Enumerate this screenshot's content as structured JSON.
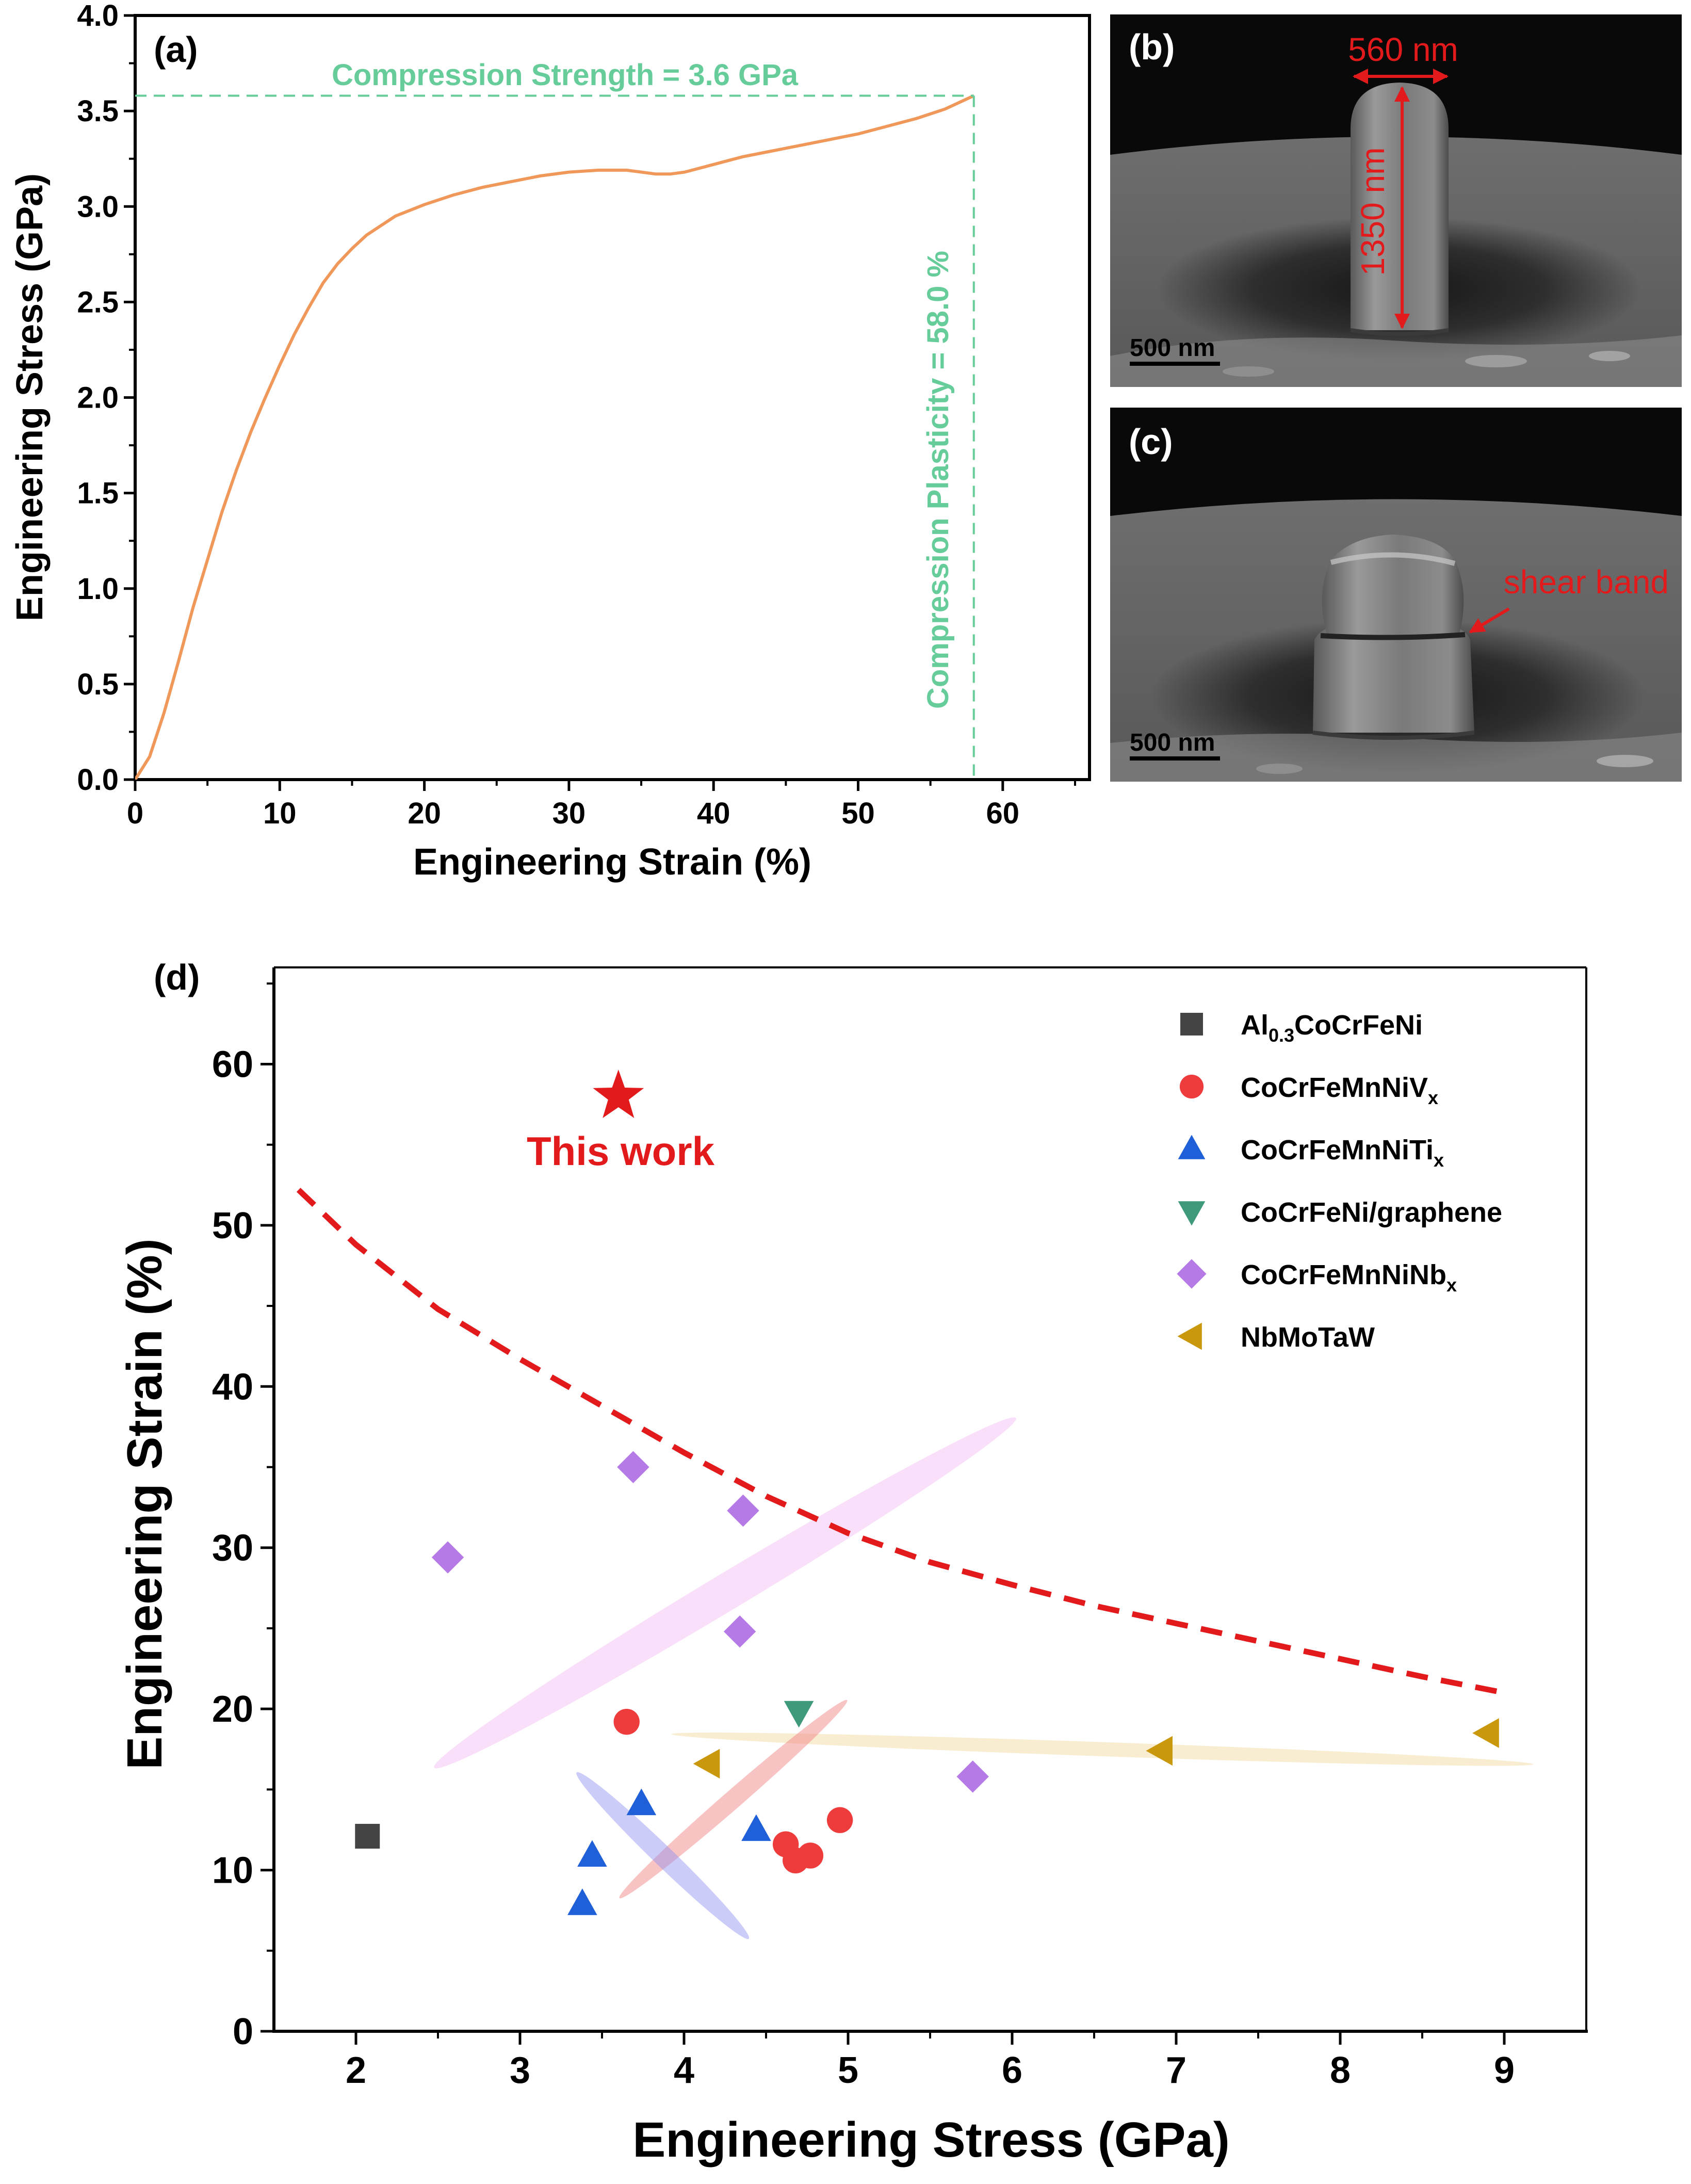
{
  "colors": {
    "curve": "#f0975a",
    "annotation": "#66cc99",
    "red": "#e31a1c",
    "dash": "#e31a1c",
    "V": "#ee3c3c",
    "Ti": "#1f5fd8",
    "graphene": "#3e9a7a",
    "Nb": "#b57ae6",
    "NbMoTaW": "#c9980c",
    "Al": "#444444",
    "ellipse_pink": "#f2b8f5",
    "ellipse_blue": "#8f8ff0",
    "ellipse_red": "#f07a7a",
    "ellipse_gold": "#f0d79a"
  },
  "panel_a": {
    "tag": "(a)",
    "strength_label": "Compression Strength = 3.6 GPa",
    "plasticity_label": "Compression Plasticity = 58.0 %"
  },
  "panel_b": {
    "tag": "(b)",
    "width_label": "560 nm",
    "height_label": "1350 nm",
    "scale_label": "500 nm"
  },
  "panel_c": {
    "tag": "(c)",
    "shear_label": "shear band",
    "scale_label": "500 nm"
  },
  "panel_d": {
    "tag": "(d)",
    "this_work_label": "This work"
  },
  "chart_data": [
    {
      "type": "line",
      "panel": "a",
      "xlabel": "Engineering Strain (%)",
      "ylabel": "Engineering Stress (GPa)",
      "xlim": [
        0,
        66
      ],
      "ylim": [
        0,
        4.0
      ],
      "xticks": [
        "0",
        "10",
        "20",
        "30",
        "40",
        "50",
        "60"
      ],
      "yticks": [
        "0.0",
        "0.5",
        "1.0",
        "1.5",
        "2.0",
        "2.5",
        "3.0",
        "3.5",
        "4.0"
      ],
      "x": [
        0,
        1,
        2,
        3,
        4,
        5,
        6,
        7,
        8,
        9,
        10,
        11,
        12,
        13,
        14,
        15,
        16,
        17,
        18,
        19,
        20,
        22,
        24,
        26,
        28,
        30,
        32,
        34,
        36,
        37,
        38,
        40,
        42,
        44,
        46,
        48,
        50,
        52,
        54,
        56,
        58
      ],
      "y": [
        0,
        0.12,
        0.35,
        0.62,
        0.9,
        1.15,
        1.4,
        1.62,
        1.82,
        2.0,
        2.17,
        2.33,
        2.47,
        2.6,
        2.7,
        2.78,
        2.85,
        2.9,
        2.95,
        2.98,
        3.01,
        3.06,
        3.1,
        3.13,
        3.16,
        3.18,
        3.19,
        3.19,
        3.17,
        3.17,
        3.18,
        3.22,
        3.26,
        3.29,
        3.32,
        3.35,
        3.38,
        3.42,
        3.46,
        3.51,
        3.58
      ]
    },
    {
      "type": "scatter",
      "panel": "d",
      "xlabel": "Engineering Stress (GPa)",
      "ylabel": "Engineering Strain (%)",
      "xlim": [
        1.5,
        9.5
      ],
      "ylim": [
        0,
        66
      ],
      "xticks": [
        "2",
        "3",
        "4",
        "5",
        "6",
        "7",
        "8",
        "9"
      ],
      "yticks": [
        "0",
        "10",
        "20",
        "30",
        "40",
        "50",
        "60"
      ],
      "legend_position": "top-right",
      "series": [
        {
          "name_main": "Al",
          "name_sub": "0.3",
          "name_tail": "CoCrFeNi",
          "marker": "square",
          "color_key": "Al",
          "points": [
            [
              2.07,
              12.1
            ]
          ]
        },
        {
          "name_main": "CoCrFeMnNiV",
          "name_sub": "x",
          "name_tail": "",
          "marker": "circle",
          "color_key": "V",
          "points": [
            [
              3.65,
              19.2
            ],
            [
              4.62,
              11.6
            ],
            [
              4.68,
              10.6
            ],
            [
              4.77,
              10.9
            ],
            [
              4.95,
              13.1
            ]
          ]
        },
        {
          "name_main": "CoCrFeMnNiTi",
          "name_sub": "x",
          "name_tail": "",
          "marker": "triangle-up",
          "color_key": "Ti",
          "points": [
            [
              3.38,
              7.9
            ],
            [
              3.44,
              10.9
            ],
            [
              3.74,
              14.1
            ],
            [
              4.44,
              12.5
            ]
          ]
        },
        {
          "name_main": "CoCrFeNi/graphene",
          "name_sub": "",
          "name_tail": "",
          "marker": "triangle-down",
          "color_key": "graphene",
          "points": [
            [
              4.7,
              19.8
            ]
          ]
        },
        {
          "name_main": "CoCrFeMnNiNb",
          "name_sub": "x",
          "name_tail": "",
          "marker": "diamond",
          "color_key": "Nb",
          "points": [
            [
              2.56,
              29.4
            ],
            [
              3.69,
              35.0
            ],
            [
              4.36,
              32.3
            ],
            [
              4.34,
              24.8
            ],
            [
              5.76,
              15.8
            ]
          ]
        },
        {
          "name_main": "NbMoTaW",
          "name_sub": "",
          "name_tail": "",
          "marker": "triangle-left",
          "color_key": "NbMoTaW",
          "points": [
            [
              4.15,
              16.6
            ],
            [
              6.91,
              17.4
            ],
            [
              8.9,
              18.5
            ]
          ]
        }
      ],
      "this_work": {
        "x": 3.6,
        "y": 58.0
      },
      "trend_line": {
        "x": [
          1.65,
          2.0,
          2.5,
          3.0,
          3.5,
          4.0,
          4.5,
          5.0,
          5.5,
          6.0,
          6.5,
          7.0,
          7.5,
          8.0,
          8.5,
          9.0
        ],
        "y": [
          52.2,
          48.8,
          44.8,
          41.7,
          38.8,
          35.9,
          33.2,
          30.9,
          29.1,
          27.7,
          26.4,
          25.3,
          24.2,
          23.1,
          22.0,
          21.0
        ]
      },
      "regions": [
        {
          "color_key": "ellipse_pink",
          "cx": 4.25,
          "cy": 27.2,
          "rx": 2.07,
          "ry": 7.1,
          "angle_deg": 31
        },
        {
          "color_key": "ellipse_gold",
          "cx": 6.55,
          "cy": 17.5,
          "rx": 2.63,
          "ry": 2.75,
          "angle_deg": -2
        },
        {
          "color_key": "ellipse_red",
          "cx": 4.3,
          "cy": 14.4,
          "rx": 0.92,
          "ry": 3.6,
          "angle_deg": 41
        },
        {
          "color_key": "ellipse_blue",
          "cx": 3.87,
          "cy": 10.9,
          "rx": 0.73,
          "ry": 3.9,
          "angle_deg": -44
        }
      ]
    }
  ]
}
